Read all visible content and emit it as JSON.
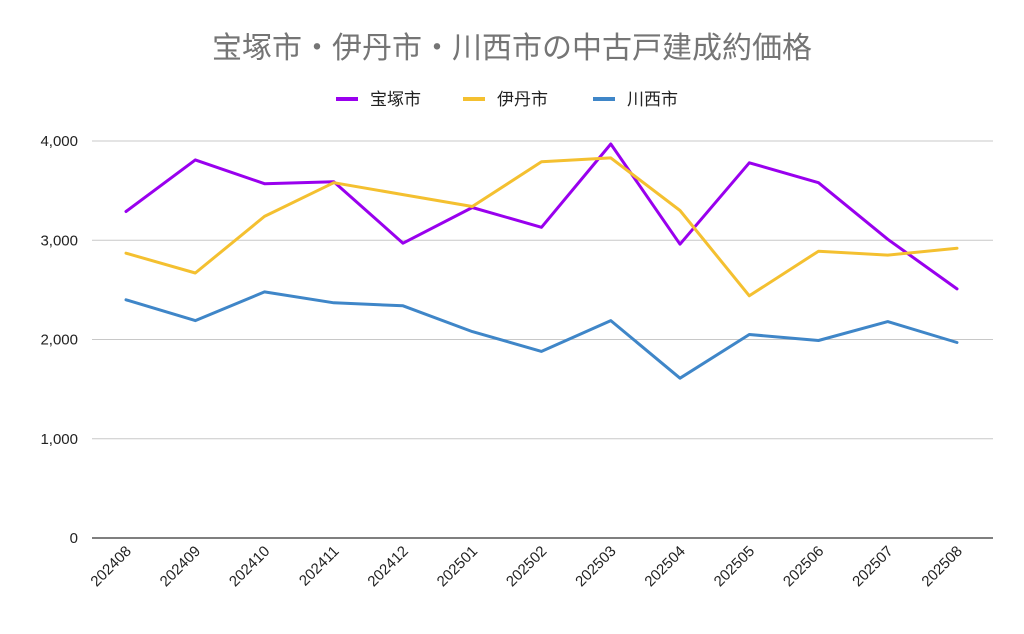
{
  "chart_data": {
    "type": "line",
    "title": "宝塚市・伊丹市・川西市の中古戸建成約価格",
    "xlabel": "",
    "ylabel": "",
    "categories": [
      "202408",
      "202409",
      "202410",
      "202411",
      "202412",
      "202501",
      "202502",
      "202503",
      "202504",
      "202505",
      "202506",
      "202507",
      "202508"
    ],
    "ylim": [
      0,
      4000
    ],
    "yticks": [
      0,
      1000,
      2000,
      3000,
      4000
    ],
    "ytick_labels": [
      "0",
      "1,000",
      "2,000",
      "3,000",
      "4,000"
    ],
    "grid": true,
    "legend_position": "top",
    "series": [
      {
        "name": "宝塚市",
        "color": "#9900ee",
        "values": [
          3290,
          3810,
          3570,
          3590,
          2970,
          3330,
          3130,
          3970,
          2960,
          3780,
          3580,
          3010,
          2510
        ]
      },
      {
        "name": "伊丹市",
        "color": "#f4c030",
        "values": [
          2870,
          2670,
          3240,
          3580,
          3460,
          3340,
          3790,
          3830,
          3300,
          2440,
          2890,
          2850,
          2920
        ]
      },
      {
        "name": "川西市",
        "color": "#3f86c8",
        "values": [
          2400,
          2190,
          2480,
          2370,
          2340,
          2080,
          1880,
          2190,
          1610,
          2050,
          1990,
          2180,
          1970
        ]
      }
    ]
  }
}
